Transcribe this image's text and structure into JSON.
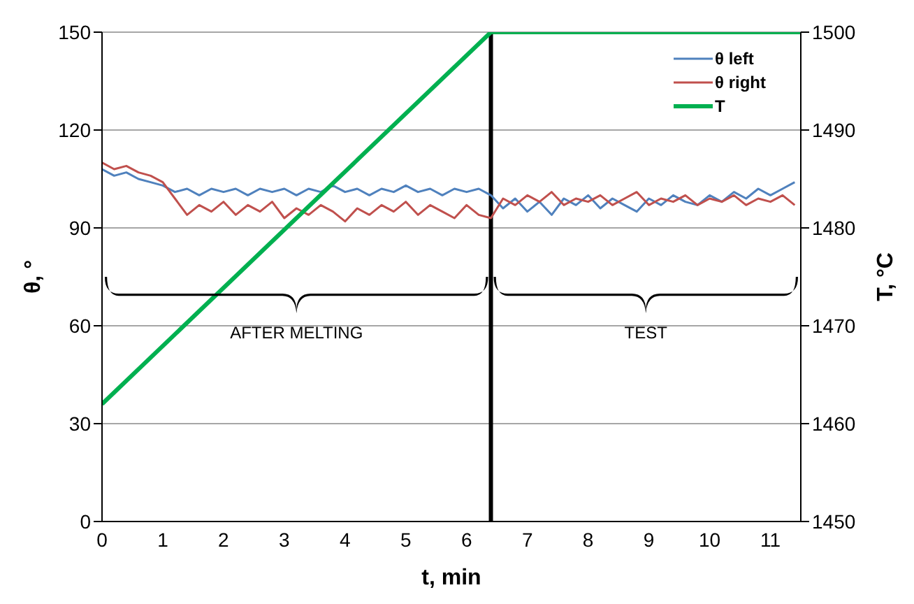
{
  "chart_data": {
    "type": "line",
    "xlabel": "t, min",
    "ylabel": "θ, °",
    "y2label": "T, °C",
    "x": [
      0,
      0.2,
      0.4,
      0.6,
      0.8,
      1.0,
      1.2,
      1.4,
      1.6,
      1.8,
      2.0,
      2.2,
      2.4,
      2.6,
      2.8,
      3.0,
      3.2,
      3.4,
      3.6,
      3.8,
      4.0,
      4.2,
      4.4,
      4.6,
      4.8,
      5.0,
      5.2,
      5.4,
      5.6,
      5.8,
      6.0,
      6.2,
      6.4,
      6.6,
      6.8,
      7.0,
      7.2,
      7.4,
      7.6,
      7.8,
      8.0,
      8.2,
      8.4,
      8.6,
      8.8,
      9.0,
      9.2,
      9.4,
      9.6,
      9.8,
      10.0,
      10.2,
      10.4,
      10.6,
      10.8,
      11.0,
      11.2,
      11.4
    ],
    "series": [
      {
        "name": "θ left",
        "color": "#4f81bd",
        "values": [
          108,
          106,
          107,
          105,
          104,
          103,
          101,
          102,
          100,
          102,
          101,
          102,
          100,
          102,
          101,
          102,
          100,
          102,
          101,
          103,
          101,
          102,
          100,
          102,
          101,
          103,
          101,
          102,
          100,
          102,
          101,
          102,
          100,
          96,
          99,
          95,
          98,
          94,
          99,
          97,
          100,
          96,
          99,
          97,
          95,
          99,
          97,
          100,
          98,
          97,
          100,
          98,
          101,
          99,
          102,
          100,
          102,
          104
        ]
      },
      {
        "name": "θ right",
        "color": "#c0504d",
        "values": [
          110,
          108,
          109,
          107,
          106,
          104,
          99,
          94,
          97,
          95,
          98,
          94,
          97,
          95,
          98,
          93,
          96,
          94,
          97,
          95,
          92,
          96,
          94,
          97,
          95,
          98,
          94,
          97,
          95,
          93,
          97,
          94,
          93,
          99,
          97,
          100,
          98,
          101,
          97,
          99,
          98,
          100,
          97,
          99,
          101,
          97,
          99,
          98,
          100,
          97,
          99,
          98,
          100,
          97,
          99,
          98,
          100,
          97
        ]
      },
      {
        "name": "T",
        "color": "#00b050",
        "axis": "y2",
        "x": [
          0,
          6.4,
          11.5
        ],
        "values": [
          1462,
          1500,
          1500
        ]
      }
    ],
    "xlim": [
      0,
      11.5
    ],
    "xticks": [
      0,
      1,
      2,
      3,
      4,
      5,
      6,
      7,
      8,
      9,
      10,
      11
    ],
    "ylim": [
      0,
      150
    ],
    "yticks": [
      0,
      30,
      60,
      90,
      120,
      150
    ],
    "y2lim": [
      1450,
      1500
    ],
    "y2ticks": [
      1450,
      1460,
      1470,
      1480,
      1490,
      1500
    ],
    "ref_lines": [
      {
        "axis": "x",
        "value": 6.4,
        "color": "#000000"
      }
    ],
    "annotations": [
      "AFTER MELTING",
      "TEST"
    ],
    "grid": "y",
    "legend": "top right",
    "marker": "none",
    "line_style": "solid"
  }
}
